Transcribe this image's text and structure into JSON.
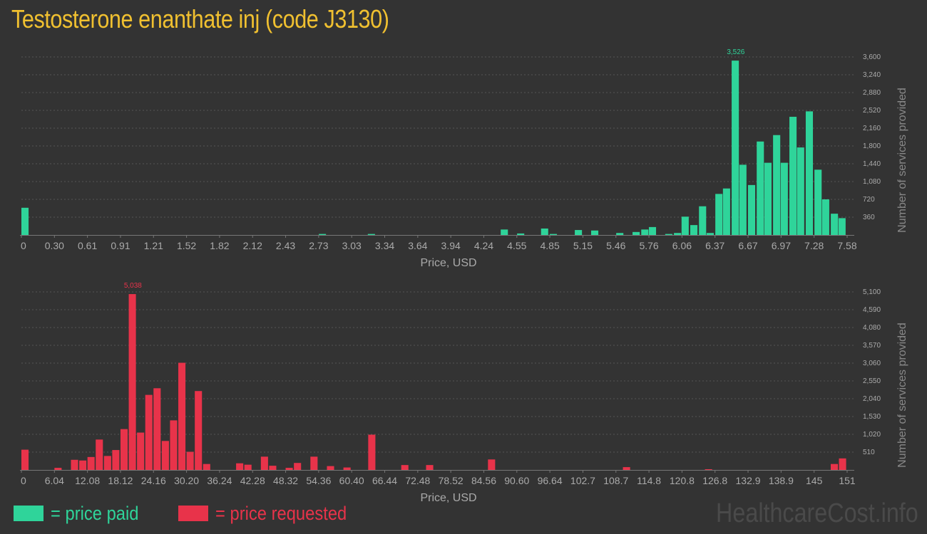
{
  "page": {
    "title": "Testosterone enanthate inj (code J3130)",
    "watermark": "HealthcareCost.info"
  },
  "legend": {
    "paid_label": "= price paid",
    "requested_label": "= price requested"
  },
  "colors": {
    "paid": "#2fd49a",
    "requested": "#e8334a",
    "title": "#f0c030",
    "background": "#333333",
    "grid": "#555555",
    "text": "#aaaaaa"
  },
  "chart_data": [
    {
      "type": "bar",
      "series_name": "price paid",
      "xlabel": "Price, USD",
      "ylabel": "Number of services provided",
      "ylim": [
        0,
        3600
      ],
      "grid": true,
      "x_ticks": [
        "0",
        "0.30",
        "0.61",
        "0.91",
        "1.21",
        "1.52",
        "1.82",
        "2.12",
        "2.43",
        "2.73",
        "3.03",
        "3.34",
        "3.64",
        "3.94",
        "4.24",
        "4.55",
        "4.85",
        "5.15",
        "5.46",
        "5.76",
        "6.06",
        "6.37",
        "6.67",
        "6.97",
        "7.28",
        "7.58"
      ],
      "y_ticks": [
        360,
        720,
        1080,
        1440,
        1800,
        2160,
        2520,
        2880,
        3240,
        3600
      ],
      "y_tick_labels": [
        "360",
        "720",
        "1,080",
        "1,440",
        "1,800",
        "2,160",
        "2,520",
        "2,880",
        "3,240",
        "3,600"
      ],
      "x_max": 7.58,
      "bin_width": 0.0758,
      "peak_label": "3,526",
      "bars": [
        {
          "x": 0.0,
          "value": 550
        },
        {
          "x": 2.73,
          "value": 20
        },
        {
          "x": 3.18,
          "value": 20
        },
        {
          "x": 4.4,
          "value": 110
        },
        {
          "x": 4.55,
          "value": 30
        },
        {
          "x": 4.77,
          "value": 130
        },
        {
          "x": 4.85,
          "value": 20
        },
        {
          "x": 5.08,
          "value": 100
        },
        {
          "x": 5.23,
          "value": 90
        },
        {
          "x": 5.46,
          "value": 40
        },
        {
          "x": 5.61,
          "value": 60
        },
        {
          "x": 5.69,
          "value": 110
        },
        {
          "x": 5.76,
          "value": 160
        },
        {
          "x": 5.91,
          "value": 20
        },
        {
          "x": 5.99,
          "value": 40
        },
        {
          "x": 6.06,
          "value": 370
        },
        {
          "x": 6.14,
          "value": 200
        },
        {
          "x": 6.22,
          "value": 580
        },
        {
          "x": 6.29,
          "value": 40
        },
        {
          "x": 6.37,
          "value": 830
        },
        {
          "x": 6.44,
          "value": 940
        },
        {
          "x": 6.52,
          "value": 3526
        },
        {
          "x": 6.59,
          "value": 1420
        },
        {
          "x": 6.67,
          "value": 1010
        },
        {
          "x": 6.75,
          "value": 1890
        },
        {
          "x": 6.82,
          "value": 1460
        },
        {
          "x": 6.9,
          "value": 2020
        },
        {
          "x": 6.97,
          "value": 1460
        },
        {
          "x": 7.05,
          "value": 2390
        },
        {
          "x": 7.12,
          "value": 1770
        },
        {
          "x": 7.2,
          "value": 2500
        },
        {
          "x": 7.28,
          "value": 1320
        },
        {
          "x": 7.35,
          "value": 720
        },
        {
          "x": 7.43,
          "value": 430
        },
        {
          "x": 7.5,
          "value": 340
        }
      ]
    },
    {
      "type": "bar",
      "series_name": "price requested",
      "xlabel": "Price, USD",
      "ylabel": "Number of services provided",
      "ylim": [
        0,
        5100
      ],
      "grid": true,
      "x_ticks": [
        "0",
        "6.04",
        "12.08",
        "18.12",
        "24.16",
        "30.20",
        "36.24",
        "42.28",
        "48.32",
        "54.36",
        "60.40",
        "66.44",
        "72.48",
        "78.52",
        "84.56",
        "90.60",
        "96.64",
        "102.7",
        "108.7",
        "114.8",
        "120.8",
        "126.8",
        "132.9",
        "138.9",
        "145",
        "151"
      ],
      "y_ticks": [
        510,
        1020,
        1530,
        2040,
        2550,
        3060,
        3570,
        4080,
        4590,
        5100
      ],
      "y_tick_labels": [
        "510",
        "1,020",
        "1,530",
        "2,040",
        "2,550",
        "3,060",
        "3,570",
        "4,080",
        "4,590",
        "5,100"
      ],
      "x_max": 151,
      "bin_width": 1.51,
      "peak_label": "5,038",
      "bars": [
        {
          "x": 0.0,
          "value": 580
        },
        {
          "x": 6.04,
          "value": 60
        },
        {
          "x": 9.06,
          "value": 290
        },
        {
          "x": 10.57,
          "value": 270
        },
        {
          "x": 12.08,
          "value": 370
        },
        {
          "x": 13.59,
          "value": 870
        },
        {
          "x": 15.1,
          "value": 400
        },
        {
          "x": 16.61,
          "value": 570
        },
        {
          "x": 18.12,
          "value": 1170
        },
        {
          "x": 19.63,
          "value": 5038
        },
        {
          "x": 21.14,
          "value": 1070
        },
        {
          "x": 22.65,
          "value": 2150
        },
        {
          "x": 24.16,
          "value": 2340
        },
        {
          "x": 25.67,
          "value": 830
        },
        {
          "x": 27.18,
          "value": 1420
        },
        {
          "x": 28.69,
          "value": 3070
        },
        {
          "x": 30.2,
          "value": 520
        },
        {
          "x": 31.71,
          "value": 2260
        },
        {
          "x": 33.22,
          "value": 170
        },
        {
          "x": 39.26,
          "value": 190
        },
        {
          "x": 40.77,
          "value": 150
        },
        {
          "x": 43.79,
          "value": 380
        },
        {
          "x": 45.3,
          "value": 120
        },
        {
          "x": 48.32,
          "value": 60
        },
        {
          "x": 49.83,
          "value": 200
        },
        {
          "x": 52.85,
          "value": 380
        },
        {
          "x": 55.87,
          "value": 110
        },
        {
          "x": 58.89,
          "value": 70
        },
        {
          "x": 63.42,
          "value": 1010
        },
        {
          "x": 69.46,
          "value": 140
        },
        {
          "x": 74.0,
          "value": 140
        },
        {
          "x": 85.32,
          "value": 300
        },
        {
          "x": 110.0,
          "value": 80
        },
        {
          "x": 125.0,
          "value": 20
        },
        {
          "x": 148.0,
          "value": 170
        },
        {
          "x": 149.5,
          "value": 330
        }
      ]
    }
  ]
}
